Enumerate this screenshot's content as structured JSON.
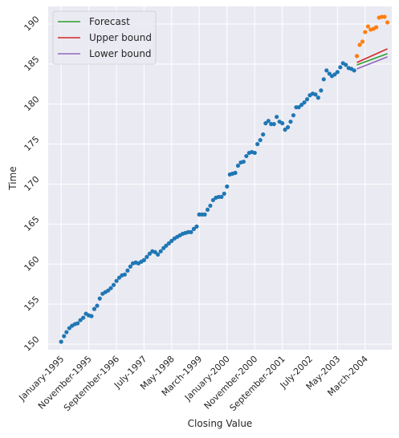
{
  "chart_data": {
    "type": "scatter",
    "title": "",
    "xlabel": "Closing Value",
    "ylabel": "Time",
    "ylim": [
      149.3,
      192.2
    ],
    "xlim": [
      "1994-08-11",
      "2004-12-19"
    ],
    "grid": true,
    "legend_position": "top-left",
    "x_tick_labels": [
      "January-1995",
      "November-1995",
      "September-1996",
      "July-1997",
      "May-1998",
      "March-1999",
      "January-2000",
      "November-2000",
      "September-2001",
      "July-2002",
      "May-2003",
      "March-2004"
    ],
    "y_ticks": [
      150,
      155,
      160,
      165,
      170,
      175,
      180,
      185,
      190
    ],
    "colors": {
      "observed": "#1f77b4",
      "actual_future": "#ff7f0e",
      "forecast": "#2ca02c",
      "upper": "#d62728",
      "lower": "#9467bd",
      "plot_background": "#eaeaf2",
      "grid": "#ffffff"
    },
    "series": [
      {
        "name": "",
        "kind": "points",
        "color_key": "observed",
        "x": [
          "1995-01",
          "1995-02",
          "1995-03",
          "1995-04",
          "1995-05",
          "1995-06",
          "1995-07",
          "1995-08",
          "1995-09",
          "1995-10",
          "1995-11",
          "1995-12",
          "1996-01",
          "1996-02",
          "1996-03",
          "1996-04",
          "1996-05",
          "1996-06",
          "1996-07",
          "1996-08",
          "1996-09",
          "1996-10",
          "1996-11",
          "1996-12",
          "1997-01",
          "1997-02",
          "1997-03",
          "1997-04",
          "1997-05",
          "1997-06",
          "1997-07",
          "1997-08",
          "1997-09",
          "1997-10",
          "1997-11",
          "1997-12",
          "1998-01",
          "1998-02",
          "1998-03",
          "1998-04",
          "1998-05",
          "1998-06",
          "1998-07",
          "1998-08",
          "1998-09",
          "1998-10",
          "1998-11",
          "1998-12",
          "1999-01",
          "1999-02",
          "1999-03",
          "1999-04",
          "1999-05",
          "1999-06",
          "1999-07",
          "1999-08",
          "1999-09",
          "1999-10",
          "1999-11",
          "1999-12",
          "2000-01",
          "2000-02",
          "2000-03",
          "2000-04",
          "2000-05",
          "2000-06",
          "2000-07",
          "2000-08",
          "2000-09",
          "2000-10",
          "2000-11",
          "2000-12",
          "2001-01",
          "2001-02",
          "2001-03",
          "2001-04",
          "2001-05",
          "2001-06",
          "2001-07",
          "2001-08",
          "2001-09",
          "2001-10",
          "2001-11",
          "2001-12",
          "2002-01",
          "2002-02",
          "2002-03",
          "2002-04",
          "2002-05",
          "2002-06",
          "2002-07",
          "2002-08",
          "2002-09",
          "2002-10",
          "2002-11",
          "2002-12",
          "2003-01",
          "2003-02",
          "2003-03",
          "2003-04",
          "2003-05",
          "2003-06",
          "2003-07",
          "2003-08",
          "2003-09",
          "2003-10",
          "2003-11"
        ],
        "values": [
          150.3,
          151.0,
          151.5,
          152.0,
          152.3,
          152.5,
          152.6,
          153.0,
          153.3,
          153.8,
          153.6,
          153.5,
          154.4,
          154.8,
          155.7,
          156.3,
          156.5,
          156.7,
          157.0,
          157.4,
          157.9,
          158.3,
          158.6,
          158.7,
          159.2,
          159.7,
          160.1,
          160.2,
          160.1,
          160.3,
          160.5,
          160.9,
          161.3,
          161.6,
          161.5,
          161.2,
          161.6,
          162.0,
          162.3,
          162.6,
          162.9,
          163.2,
          163.4,
          163.6,
          163.8,
          163.9,
          164.0,
          164.0,
          164.4,
          164.7,
          166.2,
          166.2,
          166.2,
          166.8,
          167.3,
          168.0,
          168.3,
          168.4,
          168.4,
          168.8,
          169.7,
          171.2,
          171.3,
          171.4,
          172.3,
          172.7,
          172.8,
          173.5,
          173.9,
          174.0,
          173.9,
          175.0,
          175.5,
          176.2,
          177.6,
          177.9,
          177.5,
          177.5,
          178.4,
          177.8,
          177.6,
          176.8,
          177.1,
          177.8,
          178.6,
          179.6,
          179.6,
          179.9,
          180.2,
          180.6,
          181.1,
          181.3,
          181.2,
          180.8,
          181.7,
          183.1,
          184.2,
          183.8,
          183.5,
          183.7,
          184.0,
          184.6,
          185.1,
          184.9,
          184.5,
          184.4,
          184.2
        ]
      },
      {
        "name": "",
        "kind": "points",
        "color_key": "actual_future",
        "x": [
          "2003-12",
          "2004-01",
          "2004-02",
          "2004-03",
          "2004-04",
          "2004-05",
          "2004-06",
          "2004-07",
          "2004-08",
          "2004-09",
          "2004-10",
          "2004-11"
        ],
        "values": [
          186.0,
          187.4,
          187.8,
          189.0,
          189.7,
          189.3,
          189.4,
          189.6,
          190.8,
          190.9,
          190.9,
          190.2
        ]
      },
      {
        "name": "Forecast",
        "kind": "line",
        "color_key": "forecast",
        "x": [
          "2003-12",
          "2004-11"
        ],
        "values": [
          184.9,
          186.3
        ]
      },
      {
        "name": "Upper bound",
        "kind": "line",
        "color_key": "upper",
        "x": [
          "2003-12",
          "2004-11"
        ],
        "values": [
          185.2,
          186.9
        ]
      },
      {
        "name": "Lower bound",
        "kind": "line",
        "color_key": "lower",
        "x": [
          "2003-12",
          "2004-11"
        ],
        "values": [
          184.4,
          185.9
        ]
      }
    ]
  }
}
